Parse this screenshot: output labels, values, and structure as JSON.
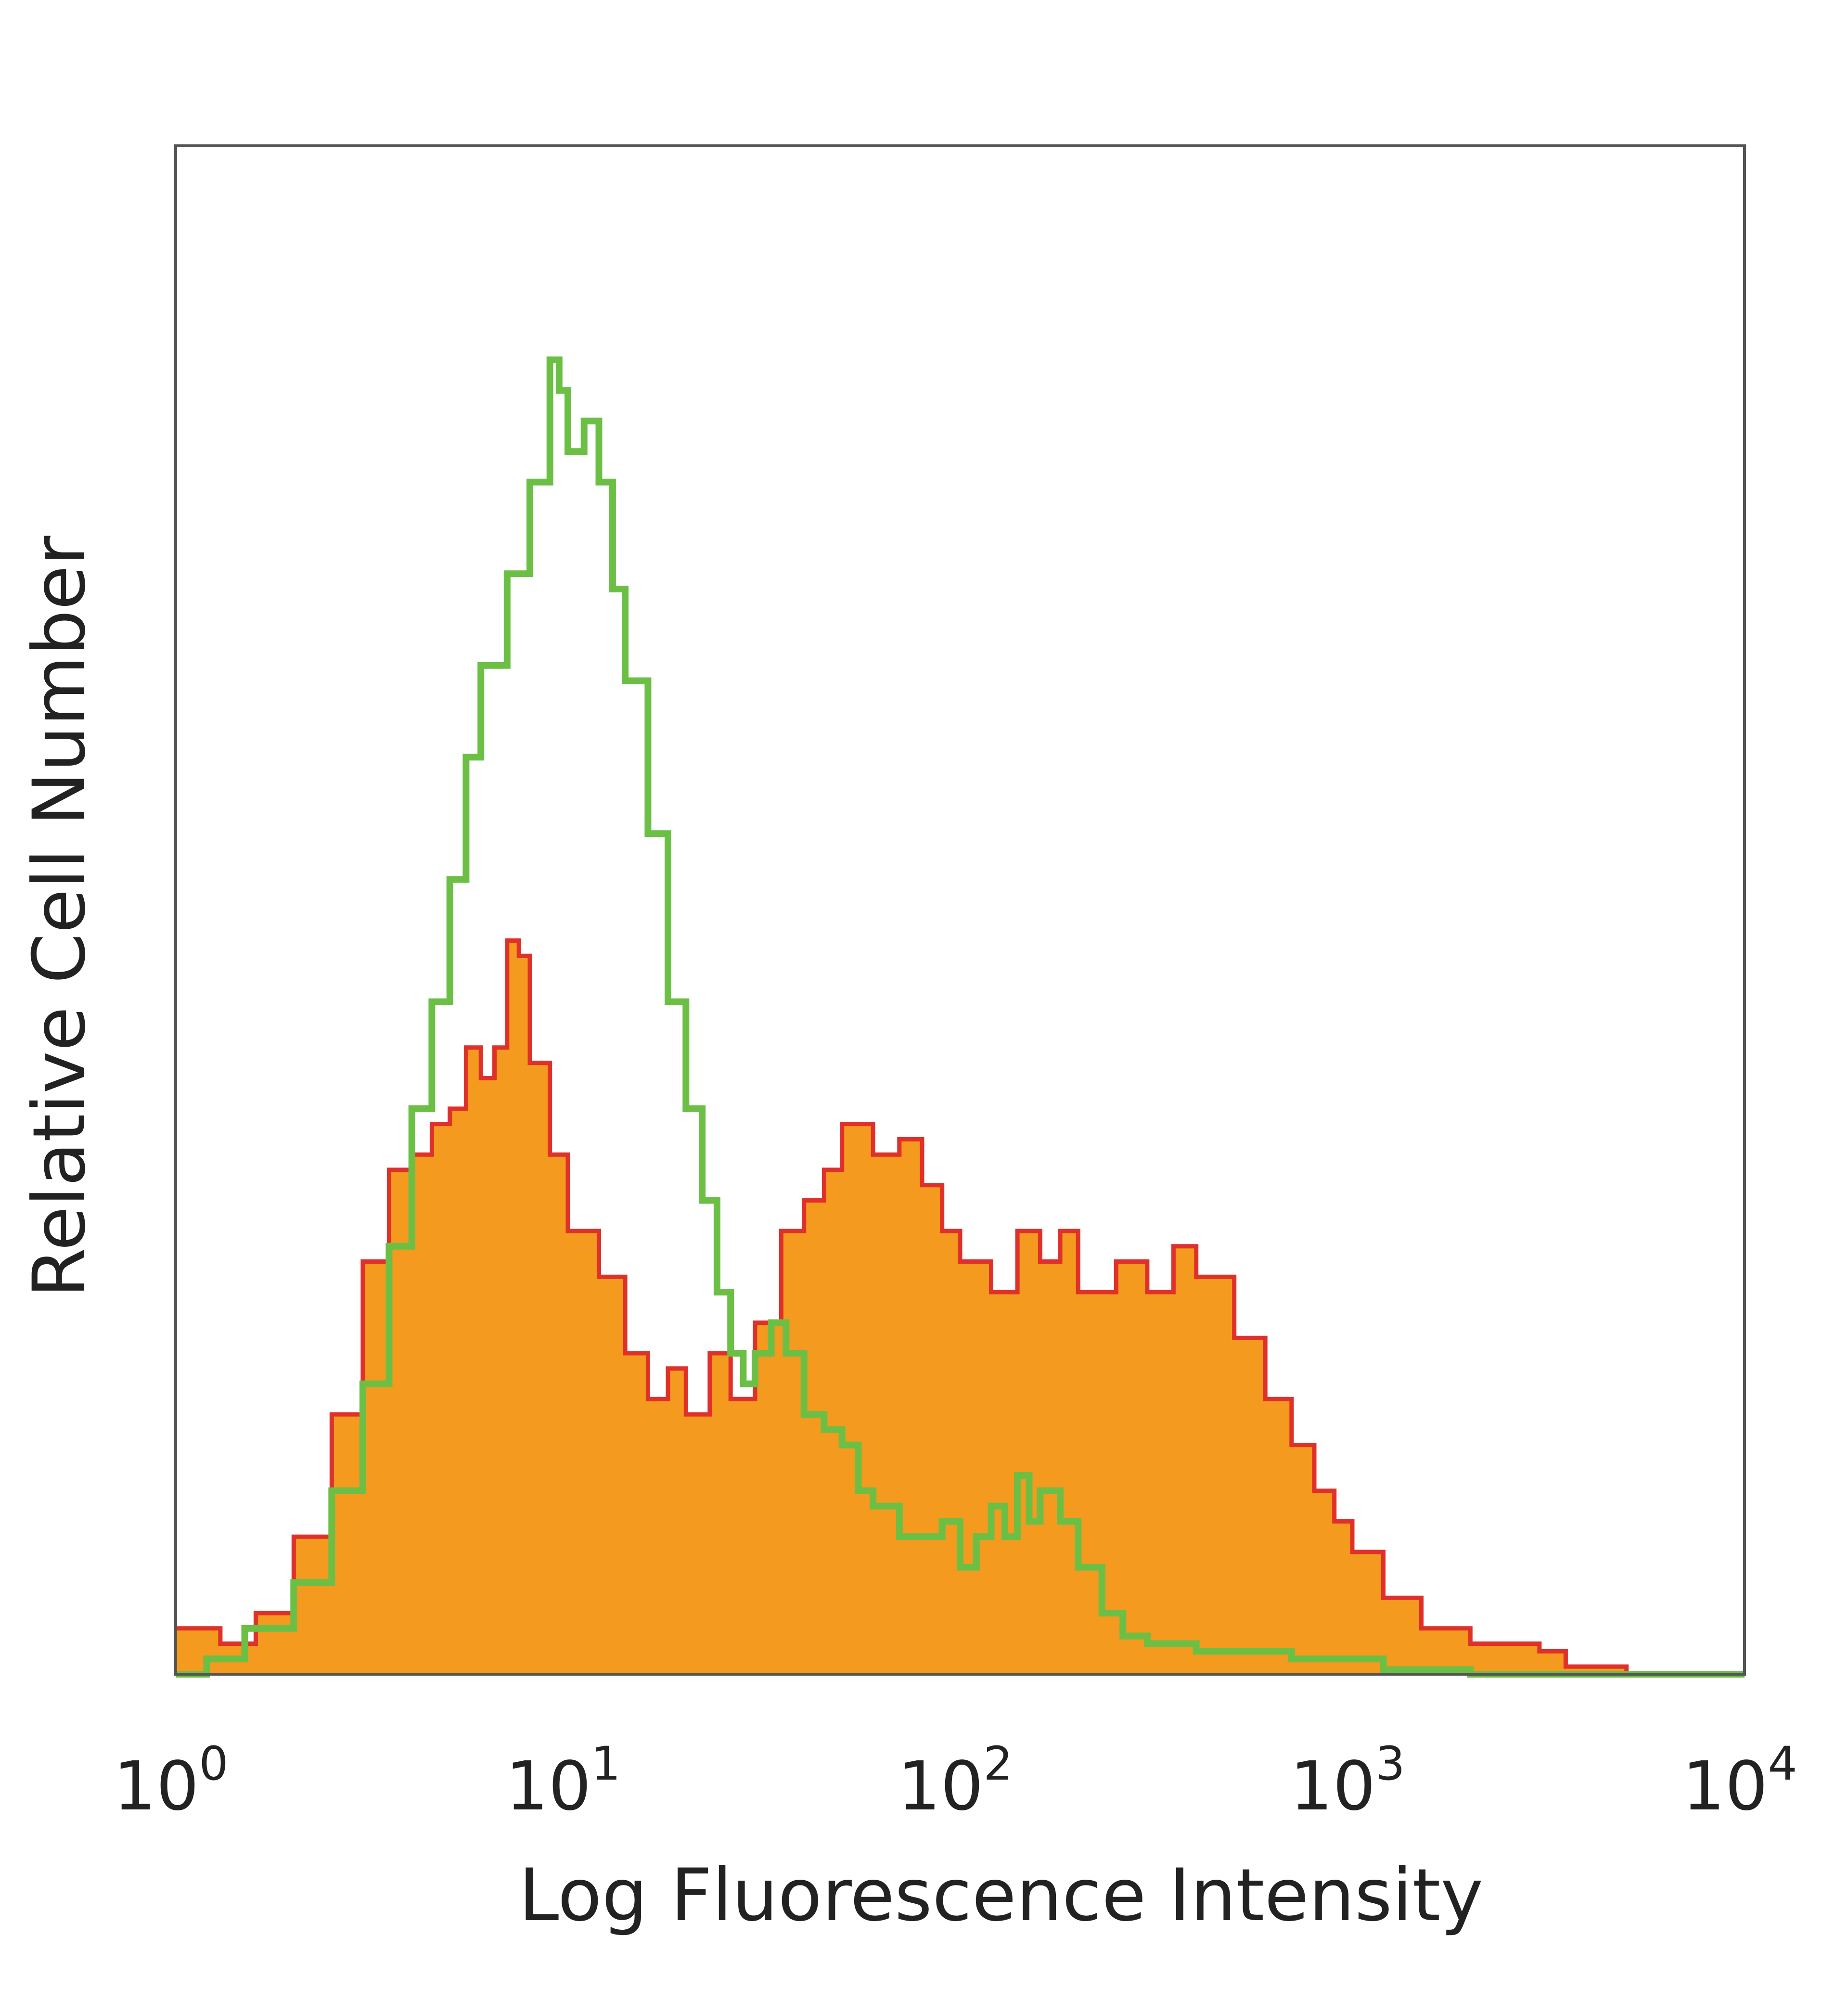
{
  "chart_data": {
    "type": "area",
    "title": "",
    "xlabel": "Log Fluorescence Intensity",
    "ylabel": "Relative Cell Number",
    "x_scale": "log",
    "xlim": [
      1,
      10000
    ],
    "ylim": [
      0,
      100
    ],
    "grid": false,
    "x_ticks": [
      {
        "base": "10",
        "exp": "0",
        "value": 1
      },
      {
        "base": "10",
        "exp": "1",
        "value": 10
      },
      {
        "base": "10",
        "exp": "2",
        "value": 100
      },
      {
        "base": "10",
        "exp": "3",
        "value": 1000
      },
      {
        "base": "10",
        "exp": "4",
        "value": 10000
      }
    ],
    "series": [
      {
        "style": "filled",
        "fill_color": "#f39a1f",
        "edge_color": "#e0302a",
        "points": [
          [
            1.0,
            3
          ],
          [
            1.3,
            2
          ],
          [
            1.6,
            4
          ],
          [
            2.0,
            9
          ],
          [
            2.5,
            17
          ],
          [
            3.0,
            27
          ],
          [
            3.5,
            33
          ],
          [
            4.0,
            34
          ],
          [
            4.5,
            36
          ],
          [
            5.0,
            37
          ],
          [
            5.5,
            41
          ],
          [
            6.0,
            39
          ],
          [
            6.5,
            41
          ],
          [
            7.0,
            48
          ],
          [
            7.5,
            47
          ],
          [
            8.0,
            40
          ],
          [
            9.0,
            34
          ],
          [
            10.0,
            29
          ],
          [
            12.0,
            26
          ],
          [
            14.0,
            21
          ],
          [
            16.0,
            18
          ],
          [
            18.0,
            20
          ],
          [
            20.0,
            17
          ],
          [
            23.0,
            21
          ],
          [
            26.0,
            18
          ],
          [
            30.0,
            23
          ],
          [
            35.0,
            29
          ],
          [
            40.0,
            31
          ],
          [
            45.0,
            33
          ],
          [
            50.0,
            36
          ],
          [
            60.0,
            34
          ],
          [
            70.0,
            35
          ],
          [
            80.0,
            32
          ],
          [
            90.0,
            29
          ],
          [
            100.0,
            27
          ],
          [
            120.0,
            25
          ],
          [
            140.0,
            29
          ],
          [
            160.0,
            27
          ],
          [
            180.0,
            29
          ],
          [
            200.0,
            25
          ],
          [
            250.0,
            27
          ],
          [
            300.0,
            25
          ],
          [
            350.0,
            28
          ],
          [
            400.0,
            26
          ],
          [
            500.0,
            22
          ],
          [
            600.0,
            18
          ],
          [
            700.0,
            15
          ],
          [
            800.0,
            12
          ],
          [
            900.0,
            10
          ],
          [
            1000.0,
            8
          ],
          [
            1200.0,
            5
          ],
          [
            1500.0,
            3
          ],
          [
            2000.0,
            2
          ],
          [
            2500.0,
            2
          ],
          [
            3000.0,
            1.5
          ],
          [
            3500.0,
            0.5
          ],
          [
            5000.0,
            0
          ],
          [
            10000.0,
            0
          ]
        ]
      },
      {
        "style": "outline",
        "line_color": "#6cbf45",
        "points": [
          [
            1.0,
            0
          ],
          [
            1.2,
            1
          ],
          [
            1.5,
            3
          ],
          [
            2.0,
            6
          ],
          [
            2.5,
            12
          ],
          [
            3.0,
            19
          ],
          [
            3.5,
            28
          ],
          [
            4.0,
            37
          ],
          [
            4.5,
            44
          ],
          [
            5.0,
            52
          ],
          [
            5.5,
            60
          ],
          [
            6.0,
            66
          ],
          [
            7.0,
            72
          ],
          [
            8.0,
            78
          ],
          [
            9.0,
            86
          ],
          [
            9.5,
            84
          ],
          [
            10.0,
            80
          ],
          [
            11.0,
            82
          ],
          [
            12.0,
            78
          ],
          [
            13.0,
            71
          ],
          [
            14.0,
            65
          ],
          [
            16.0,
            55
          ],
          [
            18.0,
            44
          ],
          [
            20.0,
            37
          ],
          [
            22.0,
            31
          ],
          [
            24.0,
            25
          ],
          [
            26.0,
            21
          ],
          [
            28.0,
            19
          ],
          [
            30.0,
            21
          ],
          [
            33.0,
            23
          ],
          [
            36.0,
            21
          ],
          [
            40.0,
            17
          ],
          [
            45.0,
            16
          ],
          [
            50.0,
            15
          ],
          [
            55.0,
            12
          ],
          [
            60.0,
            11
          ],
          [
            70.0,
            9
          ],
          [
            80.0,
            9
          ],
          [
            90.0,
            10
          ],
          [
            100.0,
            7
          ],
          [
            110.0,
            9
          ],
          [
            120.0,
            11
          ],
          [
            130.0,
            9
          ],
          [
            140.0,
            13
          ],
          [
            150.0,
            10
          ],
          [
            160.0,
            12
          ],
          [
            180.0,
            10
          ],
          [
            200.0,
            7
          ],
          [
            230.0,
            4
          ],
          [
            260.0,
            2.5
          ],
          [
            300.0,
            2
          ],
          [
            400.0,
            1.5
          ],
          [
            500.0,
            1.5
          ],
          [
            700.0,
            1
          ],
          [
            1000.0,
            1
          ],
          [
            1200.0,
            0.3
          ],
          [
            2000.0,
            0
          ],
          [
            10000.0,
            0
          ]
        ]
      }
    ]
  }
}
